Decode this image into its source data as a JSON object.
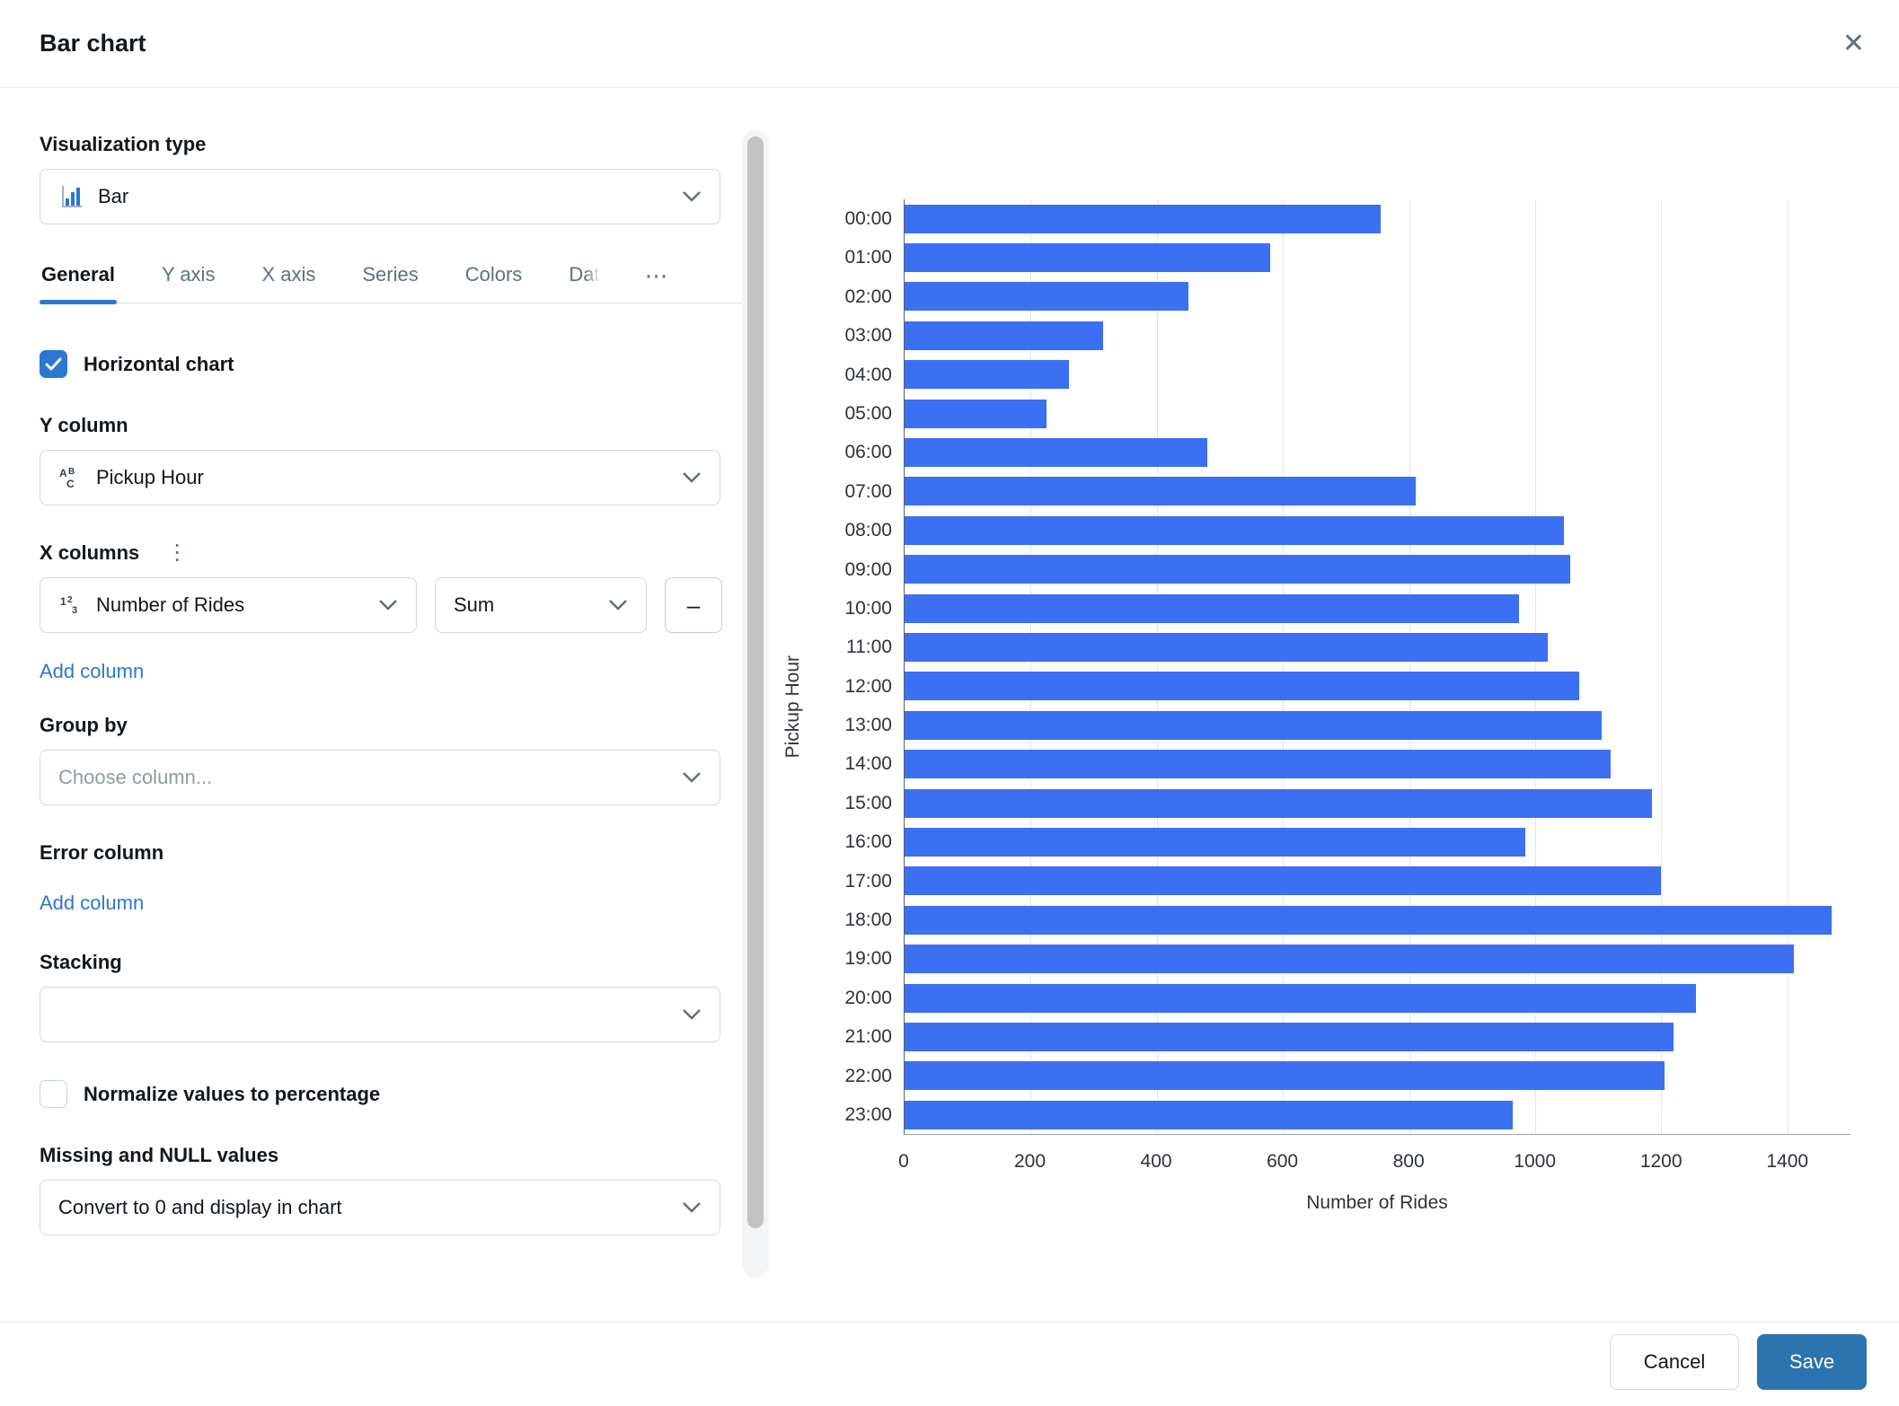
{
  "header": {
    "title": "Bar chart",
    "close_glyph": "✕"
  },
  "panel": {
    "visualization_type": {
      "label": "Visualization type",
      "value": "Bar"
    },
    "tabs": {
      "items": [
        "General",
        "Y axis",
        "X axis",
        "Series",
        "Colors",
        "Dat"
      ],
      "active": "General",
      "overflow_glyph": "⋯"
    },
    "horizontal_chart": {
      "label": "Horizontal chart",
      "checked": true
    },
    "y_column": {
      "label": "Y column",
      "value": "Pickup Hour"
    },
    "x_columns": {
      "label": "X columns",
      "kebab_glyph": "⋮",
      "column_value": "Number of Rides",
      "aggregation_value": "Sum",
      "remove_glyph": "–",
      "add_label": "Add column"
    },
    "group_by": {
      "label": "Group by",
      "placeholder": "Choose column..."
    },
    "error_column": {
      "label": "Error column",
      "add_label": "Add column"
    },
    "stacking": {
      "label": "Stacking",
      "value": ""
    },
    "normalize": {
      "label": "Normalize values to percentage",
      "checked": false
    },
    "missing_null": {
      "label": "Missing and NULL values",
      "value": "Convert to 0 and display in chart"
    }
  },
  "footer": {
    "cancel_label": "Cancel",
    "save_label": "Save"
  },
  "colors": {
    "bar": "#3b70f2",
    "accent": "#2b77d2",
    "save_button": "#2b74b0"
  },
  "chart_data": {
    "type": "bar",
    "orientation": "horizontal",
    "categories": [
      "00:00",
      "01:00",
      "02:00",
      "03:00",
      "04:00",
      "05:00",
      "06:00",
      "07:00",
      "08:00",
      "09:00",
      "10:00",
      "11:00",
      "12:00",
      "13:00",
      "14:00",
      "15:00",
      "16:00",
      "17:00",
      "18:00",
      "19:00",
      "20:00",
      "21:00",
      "22:00",
      "23:00"
    ],
    "values": [
      755,
      580,
      450,
      315,
      260,
      225,
      480,
      810,
      1045,
      1055,
      975,
      1020,
      1070,
      1105,
      1120,
      1185,
      985,
      1200,
      1470,
      1410,
      1255,
      1220,
      1205,
      965
    ],
    "xlabel": "Number of Rides",
    "ylabel": "Pickup Hour",
    "xlim": [
      0,
      1500
    ],
    "xticks": [
      0,
      200,
      400,
      600,
      800,
      1000,
      1200,
      1400
    ],
    "grid": true,
    "bar_color": "#3b70f2"
  }
}
